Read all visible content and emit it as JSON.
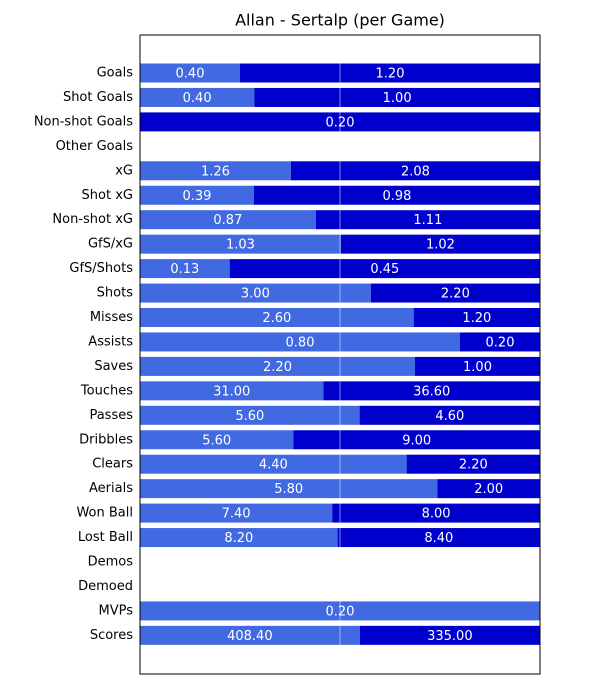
{
  "chart_data": {
    "type": "bar",
    "orientation": "horizontal",
    "stacked": "percent",
    "title": "Allan - Sertalp (per Game)",
    "categories": [
      "Goals",
      "Shot Goals",
      "Non-shot Goals",
      "Other Goals",
      "xG",
      "Shot xG",
      "Non-shot xG",
      "GfS/xG",
      "GfS/Shots",
      "Shots",
      "Misses",
      "Assists",
      "Saves",
      "Touches",
      "Passes",
      "Dribbles",
      "Clears",
      "Aerials",
      "Won Ball",
      "Lost Ball",
      "Demos",
      "Demoed",
      "MVPs",
      "Scores"
    ],
    "series": [
      {
        "color": "#4169e1",
        "values": [
          0.4,
          0.4,
          0,
          0,
          1.26,
          0.39,
          0.87,
          1.03,
          0.13,
          3.0,
          2.6,
          0.8,
          2.2,
          31.0,
          5.6,
          5.6,
          4.4,
          5.8,
          7.4,
          8.2,
          0,
          0,
          0.2,
          408.4
        ],
        "value_labels": [
          "0.40",
          "0.40",
          null,
          null,
          "1.26",
          "0.39",
          "0.87",
          "1.03",
          "0.13",
          "3.00",
          "2.60",
          "0.80",
          "2.20",
          "31.00",
          "5.60",
          "5.60",
          "4.40",
          "5.80",
          "7.40",
          "8.20",
          null,
          null,
          "0.20",
          "408.40"
        ]
      },
      {
        "color": "#0000cd",
        "values": [
          1.2,
          1.0,
          0.2,
          0,
          2.08,
          0.98,
          1.11,
          1.02,
          0.45,
          2.2,
          1.2,
          0.2,
          1.0,
          36.6,
          4.6,
          9.0,
          2.2,
          2.0,
          8.0,
          8.4,
          0,
          0,
          0,
          335.0
        ],
        "value_labels": [
          "1.20",
          "1.00",
          "0.20",
          null,
          "2.08",
          "0.98",
          "1.11",
          "1.02",
          "0.45",
          "2.20",
          "1.20",
          "0.20",
          "1.00",
          "36.60",
          "4.60",
          "9.00",
          "2.20",
          "2.00",
          "8.00",
          "8.40",
          null,
          null,
          null,
          "335.00"
        ]
      }
    ]
  }
}
